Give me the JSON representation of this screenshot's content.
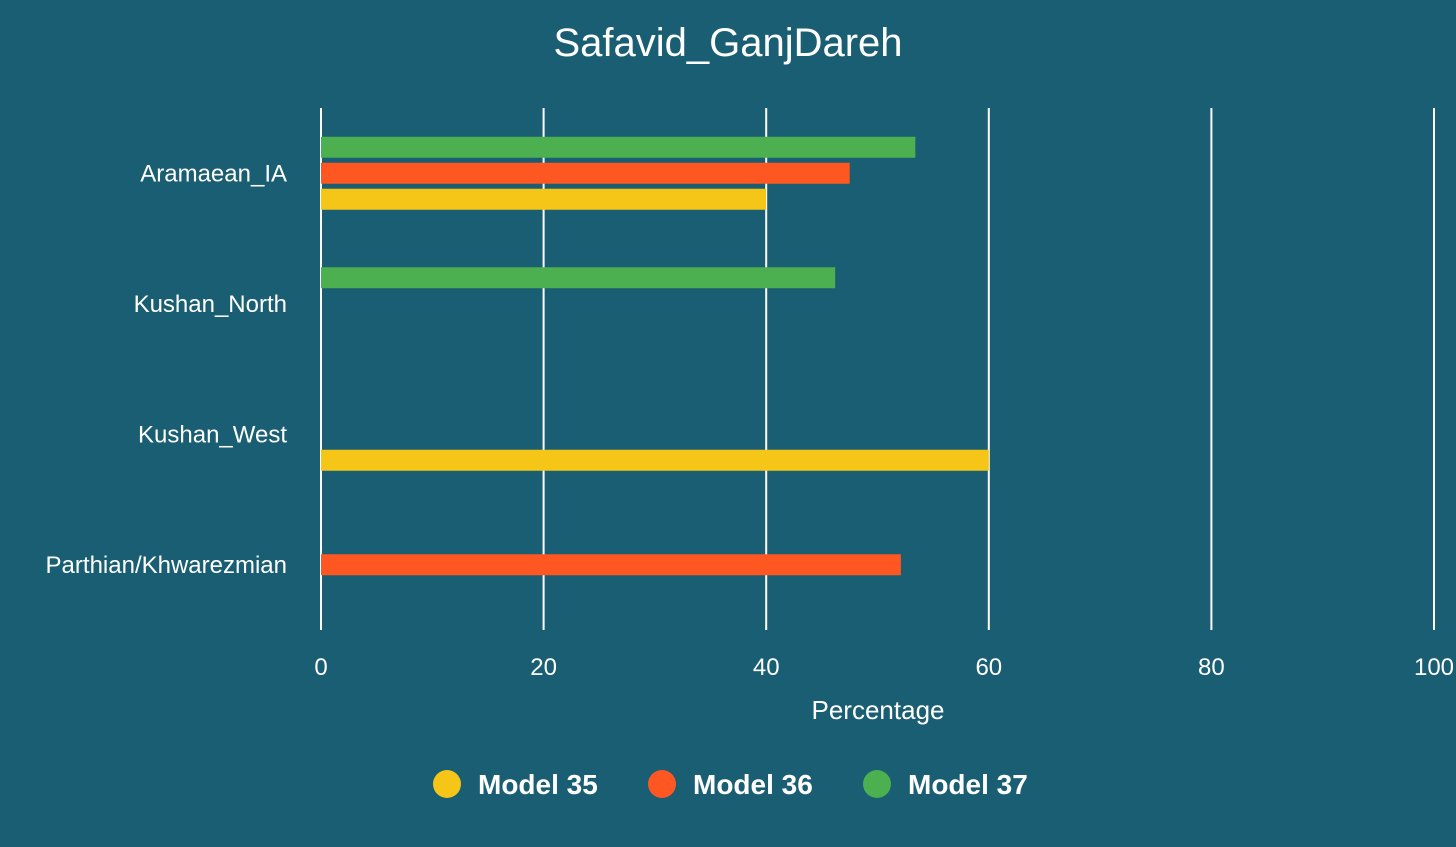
{
  "chart_data": {
    "type": "bar",
    "orientation": "horizontal",
    "title": "Safavid_GanjDareh",
    "xlabel": "Percentage",
    "ylabel": "",
    "xlim": [
      0,
      100
    ],
    "x_ticks": [
      "0",
      "20",
      "40",
      "60",
      "80",
      "100"
    ],
    "grid": true,
    "legend_position": "bottom",
    "categories": [
      "Aramaean_IA",
      "Kushan_North",
      "Kushan_West",
      "Parthian/Khwarezmian"
    ],
    "series": [
      {
        "name": "Model 35",
        "color": "#f5c518",
        "values": [
          40,
          null,
          60,
          null
        ]
      },
      {
        "name": "Model 36",
        "color": "#ff5722",
        "values": [
          47.5,
          null,
          null,
          52.1
        ]
      },
      {
        "name": "Model 37",
        "color": "#4caf50",
        "values": [
          53.4,
          46.2,
          null,
          null
        ]
      }
    ]
  }
}
